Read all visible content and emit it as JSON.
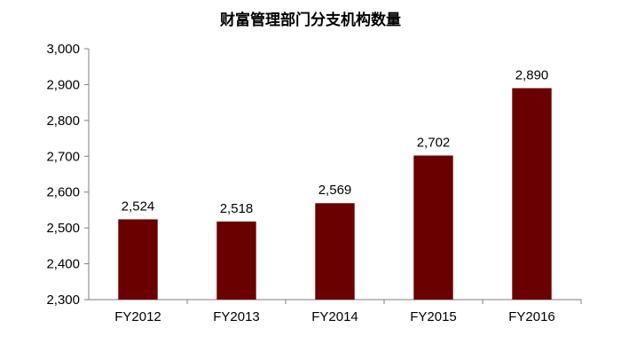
{
  "chart_data": {
    "type": "bar",
    "title": "财富管理部门分支机构数量",
    "categories": [
      "FY2012",
      "FY2013",
      "FY2014",
      "FY2015",
      "FY2016"
    ],
    "values": [
      2524,
      2518,
      2569,
      2702,
      2890
    ],
    "value_labels": [
      "2,524",
      "2,518",
      "2,569",
      "2,702",
      "2,890"
    ],
    "ylim": [
      2300,
      3000
    ],
    "yticks": [
      2300,
      2400,
      2500,
      2600,
      2700,
      2800,
      2900,
      3000
    ],
    "ytick_labels": [
      "2,300",
      "2,400",
      "2,500",
      "2,600",
      "2,700",
      "2,800",
      "2,900",
      "3,000"
    ],
    "xlabel": "",
    "ylabel": "",
    "grid": false,
    "bar_color": "#6b0000"
  }
}
